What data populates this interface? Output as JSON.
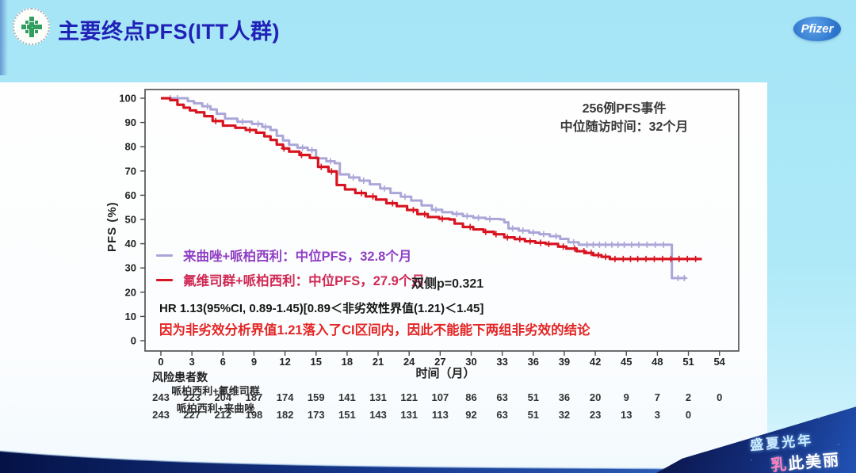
{
  "header": {
    "title": "主要终点PFS(ITT人群)",
    "pfizer_text": "Pfizer"
  },
  "chart_data": {
    "type": "line",
    "subtype": "kaplan-meier-step-curves",
    "xlabel": "时间（月）",
    "ylabel": "PFS (%)",
    "xlim": [
      0,
      54
    ],
    "ylim": [
      0,
      100
    ],
    "xticks": [
      0,
      3,
      6,
      9,
      12,
      15,
      18,
      21,
      24,
      27,
      30,
      33,
      36,
      39,
      42,
      45,
      48,
      51,
      54
    ],
    "yticks": [
      0,
      10,
      20,
      30,
      40,
      50,
      60,
      70,
      80,
      90,
      100
    ],
    "grid": false,
    "legend_position": "inside-left",
    "annotation": {
      "line1": "256例PFS事件",
      "line2": "中位随访时间：32个月"
    },
    "p_value_label": "双侧p=0.321",
    "hr_label": "HR 1.13(95%CI, 0.89-1.45)[0.89＜非劣效性界值(1.21)＜1.45]",
    "conclusion": "因为非劣效分析界值1.21落入了CI区间内，因此不能能下两组非劣效的结论",
    "series": [
      {
        "name": "来曲唑+哌柏西利",
        "legend_label": "来曲唑+哌柏西利：中位PFS，32.8个月",
        "median_pfs_months": 32.8,
        "color": "#aaa6d8",
        "label_color": "#8f3fc4",
        "steps": [
          [
            0,
            100
          ],
          [
            2.2,
            100
          ],
          [
            2.6,
            98.8
          ],
          [
            3.2,
            97.9
          ],
          [
            4,
            96.7
          ],
          [
            4.8,
            95.4
          ],
          [
            5.4,
            93.6
          ],
          [
            6.2,
            91.6
          ],
          [
            7.4,
            90.3
          ],
          [
            8.8,
            89.4
          ],
          [
            9.8,
            88.2
          ],
          [
            10.6,
            86.9
          ],
          [
            11.2,
            84.5
          ],
          [
            11.8,
            82.6
          ],
          [
            12.4,
            80.8
          ],
          [
            13.2,
            79.6
          ],
          [
            14.2,
            78.6
          ],
          [
            15,
            75.2
          ],
          [
            16,
            74
          ],
          [
            16.8,
            73.2
          ],
          [
            17.3,
            68.6
          ],
          [
            18.2,
            67.3
          ],
          [
            19.2,
            66
          ],
          [
            20.2,
            64.5
          ],
          [
            21.2,
            62.8
          ],
          [
            22.2,
            60.9
          ],
          [
            23.2,
            59.4
          ],
          [
            24.2,
            57.8
          ],
          [
            25.2,
            55.8
          ],
          [
            26.2,
            54
          ],
          [
            27.2,
            53
          ],
          [
            28.2,
            52.3
          ],
          [
            29.2,
            51.4
          ],
          [
            30.2,
            50.7
          ],
          [
            31.4,
            50.2
          ],
          [
            32.8,
            50
          ],
          [
            33.2,
            48.8
          ],
          [
            33.6,
            46.3
          ],
          [
            34.6,
            45.4
          ],
          [
            35.6,
            44.6
          ],
          [
            36.6,
            43.9
          ],
          [
            37.6,
            43.1
          ],
          [
            38.6,
            42
          ],
          [
            39.4,
            40.6
          ],
          [
            40.4,
            39.6
          ],
          [
            49.4,
            25.8
          ],
          [
            50.8,
            25.8
          ]
        ],
        "censor_months": [
          0.9,
          1.6,
          4.5,
          7.9,
          9.4,
          10.1,
          13.7,
          14.6,
          16.4,
          18.6,
          19.6,
          21.6,
          23.6,
          26.6,
          28.6,
          29.6,
          30.7,
          31.8,
          34,
          35,
          36,
          37,
          38.2,
          39.9,
          41.2,
          41.8,
          42.4,
          43,
          43.6,
          44.2,
          44.8,
          45.5,
          46.2,
          47,
          47.8,
          48.6,
          50,
          50.6
        ]
      },
      {
        "name": "氟维司群+哌柏西利",
        "legend_label": "氟维司群+哌柏西利：中位PFS，27.9个月",
        "median_pfs_months": 27.9,
        "color": "#d81420",
        "label_color": "#d02a55",
        "steps": [
          [
            0,
            100
          ],
          [
            0.9,
            99.2
          ],
          [
            1.6,
            97.3
          ],
          [
            2.2,
            96.1
          ],
          [
            2.8,
            95
          ],
          [
            3.4,
            94.2
          ],
          [
            4.2,
            92.6
          ],
          [
            5,
            90.6
          ],
          [
            6,
            88.7
          ],
          [
            7.2,
            87.8
          ],
          [
            8.2,
            86.9
          ],
          [
            9.2,
            85.8
          ],
          [
            10,
            84.3
          ],
          [
            10.6,
            82.8
          ],
          [
            11.2,
            80.9
          ],
          [
            11.8,
            79.3
          ],
          [
            12.4,
            78
          ],
          [
            13.4,
            76.6
          ],
          [
            14.4,
            75.4
          ],
          [
            15.2,
            71.7
          ],
          [
            16.2,
            69.8
          ],
          [
            17,
            64.2
          ],
          [
            17.8,
            62.4
          ],
          [
            18.8,
            60.9
          ],
          [
            19.8,
            59.5
          ],
          [
            20.8,
            58.2
          ],
          [
            21.8,
            56.7
          ],
          [
            22.8,
            55.5
          ],
          [
            23.8,
            53.9
          ],
          [
            24.8,
            52.2
          ],
          [
            25.8,
            51
          ],
          [
            26.9,
            50.3
          ],
          [
            27.9,
            50
          ],
          [
            28.4,
            48.3
          ],
          [
            29.2,
            46.9
          ],
          [
            30.2,
            45.9
          ],
          [
            31.2,
            44.9
          ],
          [
            32.2,
            43.9
          ],
          [
            33.2,
            42.6
          ],
          [
            34.2,
            41.9
          ],
          [
            35.2,
            41
          ],
          [
            36.2,
            40.4
          ],
          [
            37.2,
            39.9
          ],
          [
            38.4,
            38.8
          ],
          [
            39.2,
            38
          ],
          [
            40.2,
            36.9
          ],
          [
            41,
            36.2
          ],
          [
            41.8,
            35.3
          ],
          [
            42.6,
            34.6
          ],
          [
            43.4,
            33.7
          ],
          [
            52.3,
            33.7
          ]
        ],
        "censor_months": [
          5.3,
          8.6,
          11.9,
          13.6,
          15.5,
          16.5,
          19.4,
          20.5,
          22.4,
          24.4,
          25.5,
          27.2,
          29.9,
          31.4,
          32.4,
          33.5,
          34.7,
          35.7,
          36.7,
          37.5,
          38.9,
          40,
          40.9,
          41.6,
          42.3,
          43,
          43.9,
          44.7,
          45.4,
          46.1,
          46.9,
          47.7,
          48.5,
          49.3,
          50.1,
          50.9,
          51.7
        ]
      }
    ]
  },
  "risk_table": {
    "title": "风险患者数",
    "rows": [
      {
        "label": "哌柏西利+氟维司群",
        "values": [
          243,
          223,
          204,
          187,
          174,
          159,
          141,
          131,
          121,
          107,
          86,
          63,
          51,
          36,
          20,
          9,
          7,
          2,
          0
        ]
      },
      {
        "label": "哌柏西利+来曲唑",
        "values": [
          243,
          227,
          212,
          198,
          182,
          173,
          151,
          143,
          131,
          113,
          92,
          63,
          51,
          32,
          23,
          13,
          3,
          0
        ]
      }
    ]
  },
  "footer": {
    "campaign_line1": "盛夏光年",
    "campaign_line2": "乳此美丽"
  }
}
